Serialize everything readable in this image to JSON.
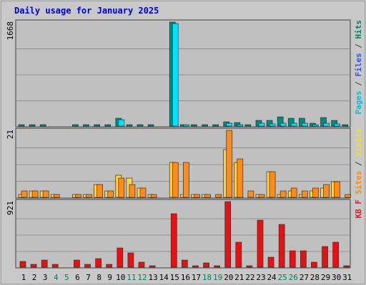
{
  "title": "Daily usage for January 2025",
  "chart_data": [
    {
      "type": "bar",
      "panel": "top",
      "axis_max_label": "1668",
      "categories": [
        "1",
        "2",
        "3",
        "4",
        "5",
        "6",
        "7",
        "8",
        "9",
        "10",
        "11",
        "12",
        "13",
        "14",
        "15",
        "16",
        "17",
        "18",
        "19",
        "20",
        "21",
        "22",
        "23",
        "24",
        "25",
        "26",
        "27",
        "28",
        "29",
        "30",
        "31"
      ],
      "ylim": [
        0,
        1668
      ],
      "side_label_parts": [
        {
          "text": "Pages",
          "color": "#00c0e0"
        },
        {
          "text": " / ",
          "color": "#404040"
        },
        {
          "text": "Files",
          "color": "#3050ff"
        },
        {
          "text": " / ",
          "color": "#404040"
        },
        {
          "text": "Hits",
          "color": "#008060"
        }
      ],
      "series": [
        {
          "color": "#008b7a",
          "values": [
            15,
            15,
            15,
            0,
            0,
            15,
            15,
            15,
            15,
            120,
            25,
            15,
            15,
            0,
            1668,
            25,
            15,
            15,
            15,
            70,
            55,
            25,
            90,
            90,
            150,
            130,
            125,
            40,
            135,
            95,
            15
          ]
        },
        {
          "color": "#00e0ff",
          "values": [
            0,
            0,
            0,
            0,
            0,
            0,
            0,
            0,
            0,
            100,
            0,
            0,
            0,
            0,
            1640,
            10,
            0,
            0,
            0,
            40,
            20,
            0,
            40,
            35,
            45,
            50,
            40,
            20,
            45,
            35,
            0
          ]
        }
      ]
    },
    {
      "type": "bar",
      "panel": "middle",
      "axis_max_label": "21",
      "categories": [
        "1",
        "2",
        "3",
        "4",
        "5",
        "6",
        "7",
        "8",
        "9",
        "10",
        "11",
        "12",
        "13",
        "14",
        "15",
        "16",
        "17",
        "18",
        "19",
        "20",
        "21",
        "22",
        "23",
        "24",
        "25",
        "26",
        "27",
        "28",
        "29",
        "30",
        "31"
      ],
      "ylim": [
        0,
        21
      ],
      "side_label_parts": [
        {
          "text": "Sites",
          "color": "#ff8c00"
        },
        {
          "text": " / ",
          "color": "#404040"
        },
        {
          "text": "Visits",
          "color": "#f0e020"
        }
      ],
      "series": [
        {
          "color": "#ffd24a",
          "values": [
            1,
            2,
            2,
            1,
            0,
            1,
            1,
            4,
            2,
            7,
            6,
            3,
            1,
            0,
            11,
            1,
            1,
            1,
            0,
            15,
            11,
            0,
            1,
            8,
            1,
            2,
            1,
            2,
            3,
            5,
            0
          ]
        },
        {
          "color": "#ff8c1a",
          "values": [
            2,
            2,
            2,
            1,
            0,
            1,
            1,
            4,
            2,
            6,
            4,
            3,
            1,
            0,
            11,
            11,
            1,
            1,
            1,
            21,
            12,
            2,
            1,
            8,
            2,
            3,
            2,
            3,
            4,
            5,
            1
          ]
        }
      ]
    },
    {
      "type": "bar",
      "panel": "bottom",
      "axis_max_label": "921",
      "categories": [
        "1",
        "2",
        "3",
        "4",
        "5",
        "6",
        "7",
        "8",
        "9",
        "10",
        "11",
        "12",
        "13",
        "14",
        "15",
        "16",
        "17",
        "18",
        "19",
        "20",
        "21",
        "22",
        "23",
        "24",
        "25",
        "26",
        "27",
        "28",
        "29",
        "30",
        "31"
      ],
      "ylim": [
        0,
        921
      ],
      "side_label_parts": [
        {
          "text": "KB F",
          "color": "#e02020"
        }
      ],
      "series": [
        {
          "color": "#e81010",
          "values": [
            80,
            40,
            100,
            40,
            0,
            100,
            40,
            125,
            40,
            270,
            200,
            70,
            20,
            0,
            755,
            100,
            20,
            60,
            20,
            921,
            350,
            20,
            660,
            140,
            600,
            230,
            230,
            70,
            290,
            350,
            20
          ]
        }
      ]
    }
  ],
  "x_labels": [
    {
      "text": "1",
      "color": "#000000"
    },
    {
      "text": "2",
      "color": "#000000"
    },
    {
      "text": "3",
      "color": "#000000"
    },
    {
      "text": "4",
      "color": "#008060"
    },
    {
      "text": "5",
      "color": "#008060"
    },
    {
      "text": "6",
      "color": "#000000"
    },
    {
      "text": "7",
      "color": "#000000"
    },
    {
      "text": "8",
      "color": "#000000"
    },
    {
      "text": "9",
      "color": "#000000"
    },
    {
      "text": "10",
      "color": "#000000"
    },
    {
      "text": "11",
      "color": "#008060"
    },
    {
      "text": "12",
      "color": "#008060"
    },
    {
      "text": "13",
      "color": "#000000"
    },
    {
      "text": "14",
      "color": "#000000"
    },
    {
      "text": "15",
      "color": "#000000"
    },
    {
      "text": "16",
      "color": "#000000"
    },
    {
      "text": "17",
      "color": "#000000"
    },
    {
      "text": "18",
      "color": "#008060"
    },
    {
      "text": "19",
      "color": "#008060"
    },
    {
      "text": "20",
      "color": "#000000"
    },
    {
      "text": "21",
      "color": "#000000"
    },
    {
      "text": "22",
      "color": "#000000"
    },
    {
      "text": "23",
      "color": "#000000"
    },
    {
      "text": "24",
      "color": "#000000"
    },
    {
      "text": "25",
      "color": "#008060"
    },
    {
      "text": "26",
      "color": "#008060"
    },
    {
      "text": "27",
      "color": "#000000"
    },
    {
      "text": "28",
      "color": "#000000"
    },
    {
      "text": "29",
      "color": "#000000"
    },
    {
      "text": "30",
      "color": "#000000"
    },
    {
      "text": "31",
      "color": "#000000"
    }
  ],
  "colors": {
    "frame_bg": "#c8c8c8",
    "plot_bg": "#c0c0c0",
    "grid": "#909090",
    "title": "#0000c8"
  }
}
